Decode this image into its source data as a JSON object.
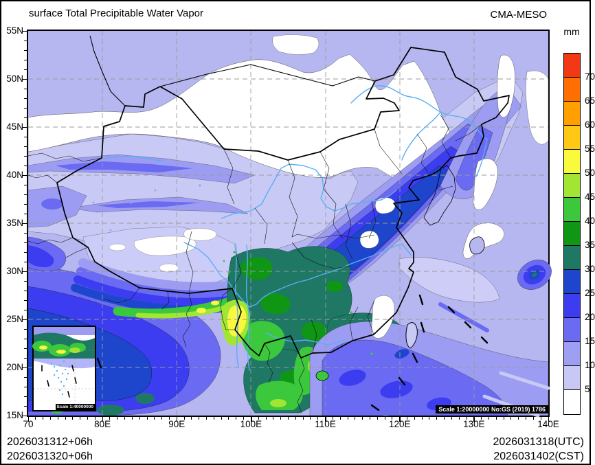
{
  "header": {
    "title": "surface Total Precipitable Water Vapor",
    "model": "CMA-MESO"
  },
  "colorbar": {
    "unit": "mm",
    "boundary_labels": [
      "70",
      "65",
      "60",
      "55",
      "50",
      "45",
      "40",
      "35",
      "30",
      "25",
      "20",
      "15",
      "10",
      "5"
    ],
    "colors_low_to_high": [
      "#ffffff",
      "#c8c8f5",
      "#9e9ef2",
      "#6a6af2",
      "#3c3cf0",
      "#1e46cd",
      "#1e7864",
      "#0f9614",
      "#3cc83c",
      "#a0e632",
      "#fafa3c",
      "#ffc814",
      "#ffa000",
      "#ff6e00",
      "#f23814"
    ]
  },
  "axes": {
    "lat_labels": [
      "55N",
      "50N",
      "45N",
      "40N",
      "35N",
      "30N",
      "25N",
      "20N",
      "15N"
    ],
    "lon_labels": [
      "70",
      "80E",
      "90E",
      "100E",
      "110E",
      "120E",
      "130E",
      "140E"
    ]
  },
  "annotations": {
    "main_scale": "Scale 1:20000000 No:GS (2019) 1786",
    "inset_scale": "Scale 1:40000000"
  },
  "footer": {
    "left_line1": "2026031312+06h",
    "left_line2": "2026031320+06h",
    "right_line1": "2026031318(UTC)",
    "right_line2": "2026031402(CST)"
  }
}
